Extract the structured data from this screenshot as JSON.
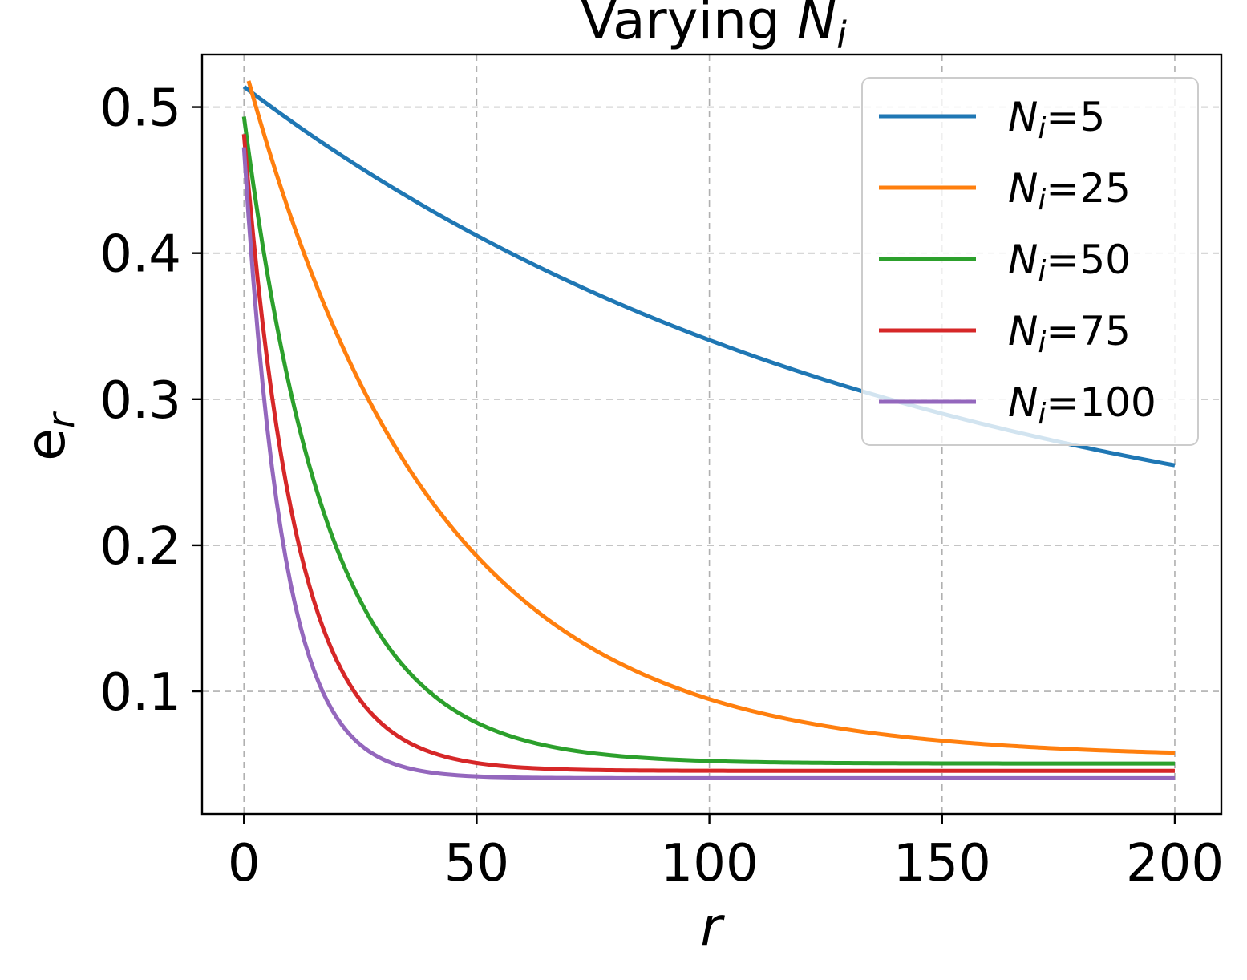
{
  "chart_data": {
    "type": "line",
    "title_main": "Varying ",
    "title_var": "N",
    "title_sub": "i",
    "xlabel": "r",
    "ylabel_main": "e",
    "ylabel_sub": "r",
    "xlim": [
      -9,
      210
    ],
    "ylim": [
      0.016,
      0.536
    ],
    "xticks": [
      0,
      50,
      100,
      150,
      200
    ],
    "xtick_labels": [
      "0",
      "50",
      "100",
      "150",
      "200"
    ],
    "yticks": [
      0.1,
      0.2,
      0.3,
      0.4,
      0.5
    ],
    "ytick_labels": [
      "0.1",
      "0.2",
      "0.3",
      "0.4",
      "0.5"
    ],
    "grid": true,
    "legend_position": "top-right",
    "series": [
      {
        "name": "N_i=5",
        "legend_var": "N",
        "legend_sub": "i",
        "legend_value": "=5",
        "color": "#1f77b4",
        "start_x": 0,
        "c": 0.171,
        "a": 0.343,
        "k": 0.00705
      },
      {
        "name": "N_i=25",
        "legend_var": "N",
        "legend_sub": "i",
        "legend_value": "=25",
        "color": "#ff7f0e",
        "start_x": 1,
        "c": 0.0545,
        "a": 0.475,
        "k": 0.0247
      },
      {
        "name": "N_i=50",
        "legend_var": "N",
        "legend_sub": "i",
        "legend_value": "=50",
        "color": "#2ca02c",
        "start_x": 0,
        "c": 0.0505,
        "a": 0.443,
        "k": 0.0552
      },
      {
        "name": "N_i=75",
        "legend_var": "N",
        "legend_sub": "i",
        "legend_value": "=75",
        "color": "#d62728",
        "start_x": 0,
        "c": 0.0455,
        "a": 0.436,
        "k": 0.0879
      },
      {
        "name": "N_i=100",
        "legend_var": "N",
        "legend_sub": "i",
        "legend_value": "=100",
        "color": "#9467bd",
        "start_x": 0,
        "c": 0.0405,
        "a": 0.432,
        "k": 0.1175
      }
    ]
  }
}
